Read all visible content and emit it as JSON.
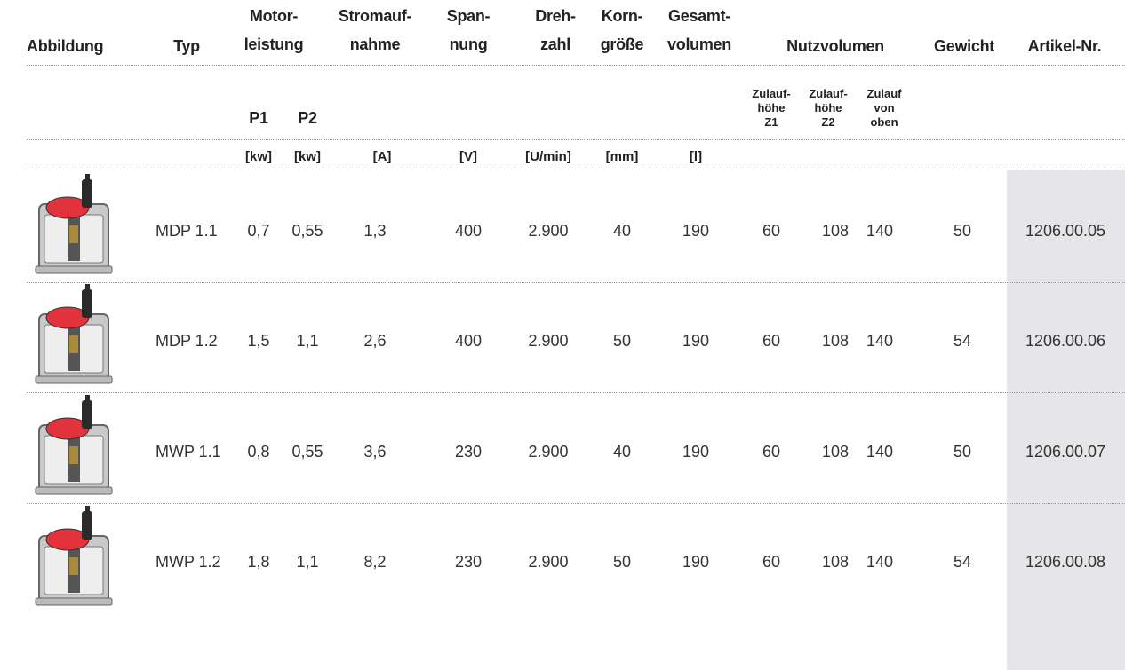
{
  "headers": [
    [
      "Abbildung"
    ],
    [
      "Typ"
    ],
    [
      "Motor-",
      "leistung"
    ],
    [
      "Stromauf-",
      "nahme"
    ],
    [
      "Span-",
      "nung"
    ],
    [
      "Dreh-",
      "zahl"
    ],
    [
      "Korn-",
      "größe"
    ],
    [
      "Gesamt-",
      "volumen"
    ],
    [
      "Nutzvolumen"
    ],
    [
      "Gewicht"
    ],
    [
      "Artikel-Nr."
    ]
  ],
  "subheaders": {
    "power": [
      "P1",
      "P2"
    ],
    "inlet": [
      [
        "Zulauf-",
        "höhe",
        "Z1"
      ],
      [
        "Zulauf-",
        "höhe",
        "Z2"
      ],
      [
        "Zulauf",
        "von",
        "oben"
      ]
    ]
  },
  "units": [
    "[kw]",
    "[kw]",
    "[A]",
    "[V]",
    "[U/min]",
    "[mm]",
    "[l]"
  ],
  "rows": [
    [
      "MDP 1.1",
      "0,7",
      "0,55",
      "1,3",
      "400",
      "2.900",
      "40",
      "190",
      "60",
      "108",
      "140",
      "50",
      "1206.00.05"
    ],
    [
      "MDP 1.2",
      "1,5",
      "1,1",
      "2,6",
      "400",
      "2.900",
      "50",
      "190",
      "60",
      "108",
      "140",
      "54",
      "1206.00.06"
    ],
    [
      "MWP 1.1",
      "0,8",
      "0,55",
      "3,6",
      "230",
      "2.900",
      "40",
      "190",
      "60",
      "108",
      "140",
      "50",
      "1206.00.07"
    ],
    [
      "MWP 1.2",
      "1,8",
      "1,1",
      "8,2",
      "230",
      "2.900",
      "50",
      "190",
      "60",
      "108",
      "140",
      "54",
      "1206.00.08"
    ]
  ]
}
